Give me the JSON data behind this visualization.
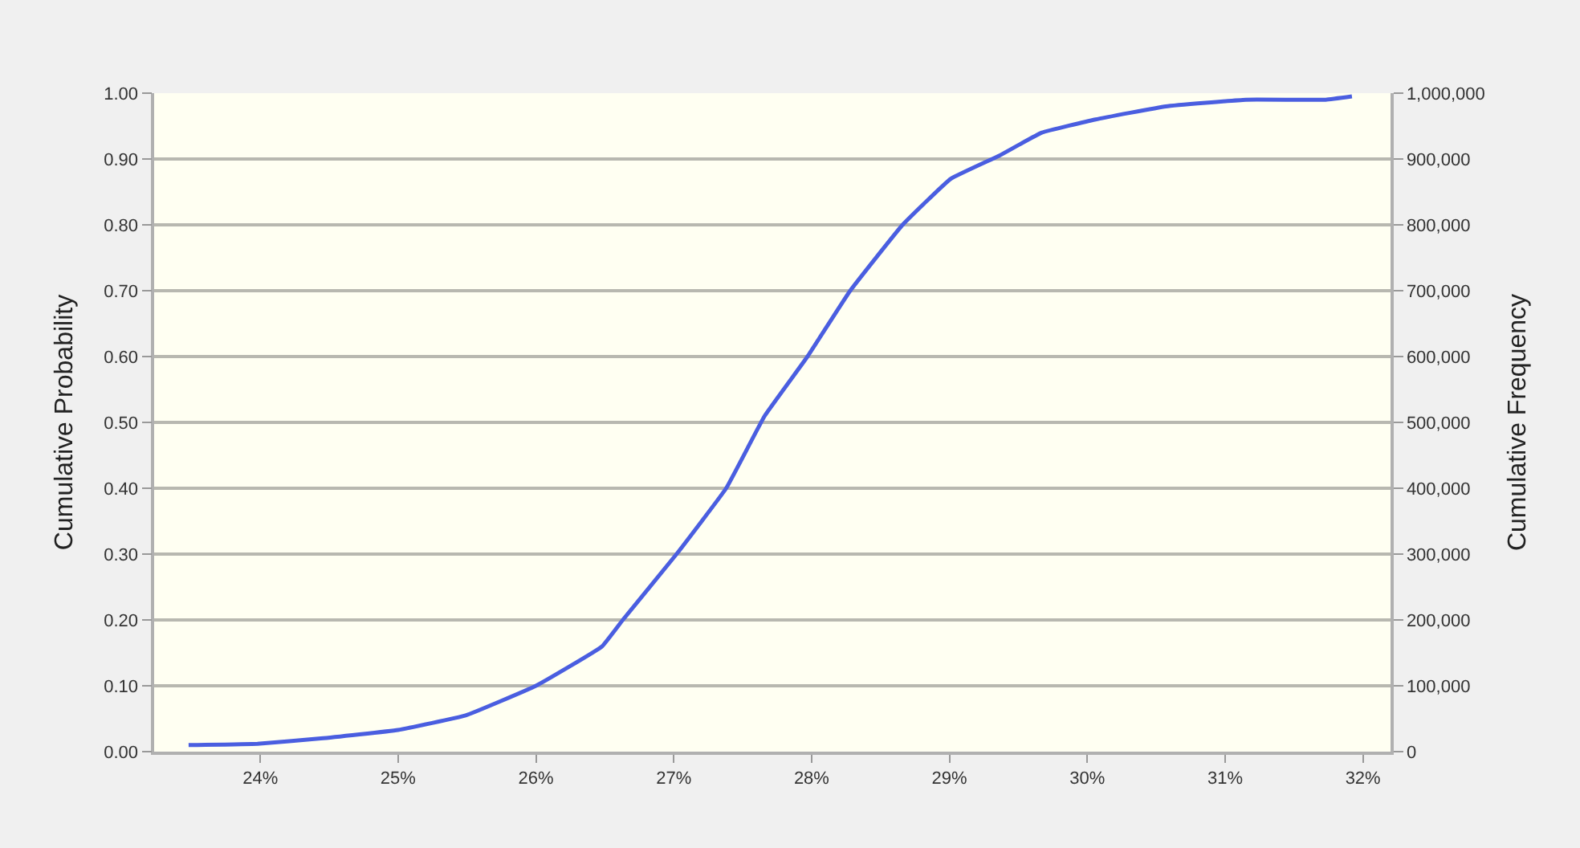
{
  "chart_data": {
    "type": "line",
    "ylabel": "Cumulative Probability",
    "y2label": "Cumulative Frequency",
    "xlim": [
      23.23,
      32.2
    ],
    "xticks": [
      {
        "value": 24,
        "label": "24%"
      },
      {
        "value": 25,
        "label": "25%"
      },
      {
        "value": 26,
        "label": "26%"
      },
      {
        "value": 27,
        "label": "27%"
      },
      {
        "value": 28,
        "label": "28%"
      },
      {
        "value": 29,
        "label": "29%"
      },
      {
        "value": 30,
        "label": "30%"
      },
      {
        "value": 31,
        "label": "31%"
      },
      {
        "value": 32,
        "label": "32%"
      }
    ],
    "ylim": [
      0,
      1
    ],
    "yticks": [
      {
        "value": 0,
        "label": "0.00"
      },
      {
        "value": 0.1,
        "label": "0.10"
      },
      {
        "value": 0.2,
        "label": "0.20"
      },
      {
        "value": 0.3,
        "label": "0.30"
      },
      {
        "value": 0.4,
        "label": "0.40"
      },
      {
        "value": 0.5,
        "label": "0.50"
      },
      {
        "value": 0.6,
        "label": "0.60"
      },
      {
        "value": 0.7,
        "label": "0.70"
      },
      {
        "value": 0.8,
        "label": "0.80"
      },
      {
        "value": 0.9,
        "label": "0.90"
      },
      {
        "value": 1,
        "label": "1.00"
      }
    ],
    "y2lim": [
      0,
      1000000
    ],
    "y2ticks": [
      0,
      {
        "value": 100000,
        "label": "100,000"
      },
      {
        "value": 200000,
        "label": "200,000"
      },
      {
        "value": 300000,
        "label": "300,000"
      },
      {
        "value": 400000,
        "label": "400,000"
      },
      {
        "value": 500000,
        "label": "500,000"
      },
      {
        "value": 600000,
        "label": "600,000"
      },
      {
        "value": 700000,
        "label": "700,000"
      },
      {
        "value": 800000,
        "label": "800,000"
      },
      {
        "value": 900000,
        "label": "900,000"
      },
      {
        "value": 1000000,
        "label": "1,000,000"
      }
    ],
    "grid": "y",
    "legend": false,
    "marker": "none",
    "line_style": "solid",
    "series": [
      {
        "color": "#4a5ee0",
        "x": [
          23.48,
          23.98,
          24.44,
          25.0,
          25.49,
          26.0,
          26.48,
          26.63,
          27.02,
          27.38,
          27.66,
          27.97,
          28.28,
          28.66,
          29.01,
          29.36,
          29.67,
          30.06,
          30.57,
          31.15,
          31.73,
          31.92
        ],
        "values": [
          0.01,
          0.012,
          0.02,
          0.033,
          0.055,
          0.1,
          0.16,
          0.2,
          0.3,
          0.4,
          0.51,
          0.6,
          0.7,
          0.8,
          0.87,
          0.905,
          0.94,
          0.96,
          0.98,
          0.99,
          0.99,
          0.995
        ]
      }
    ]
  }
}
